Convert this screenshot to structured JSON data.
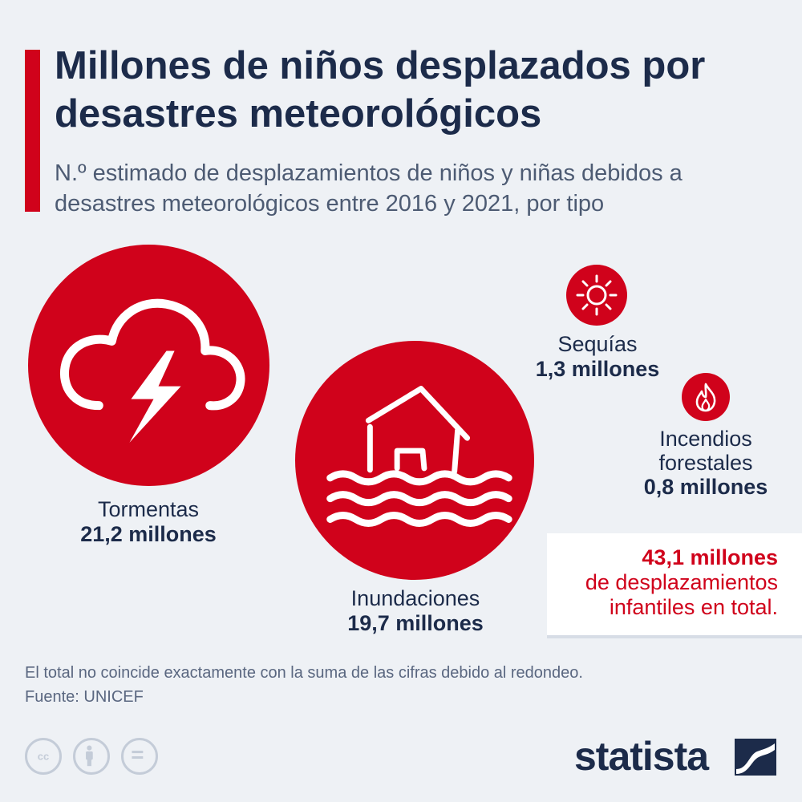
{
  "header": {
    "title": "Millones de niños desplazados por desastres meteorológicos",
    "subtitle": "N.º estimado de desplazamientos de niños y niñas debidos a desastres meteorológicos entre 2016 y 2021, por tipo"
  },
  "chart_data": {
    "type": "bubble",
    "unit": "millones",
    "categories": [
      "Tormentas",
      "Inundaciones",
      "Sequías",
      "Incendios forestales"
    ],
    "values": [
      21.2,
      19.7,
      1.3,
      0.8
    ],
    "total": 43.1
  },
  "labels": {
    "storms": {
      "name": "Tormentas",
      "value": "21,2 millones",
      "icon": "storm-cloud-lightning-icon"
    },
    "floods": {
      "name": "Inundaciones",
      "value": "19,7 millones",
      "icon": "flooded-house-icon"
    },
    "drought": {
      "name": "Sequías",
      "value": "1,3 millones",
      "icon": "sun-icon"
    },
    "fire": {
      "name_line1": "Incendios",
      "name_line2": "forestales",
      "value": "0,8 millones",
      "icon": "flame-icon"
    }
  },
  "total": {
    "value": "43,1 millones",
    "line2": "de desplazamientos",
    "line3": "infantiles en total."
  },
  "footer": {
    "note": "El total no coincide exactamente con la suma de las cifras debido al redondeo.",
    "source": "Fuente: UNICEF",
    "license_icons": [
      "cc-icon",
      "by-icon",
      "nd-icon"
    ]
  },
  "brand": {
    "name": "statista"
  },
  "colors": {
    "accent": "#d0021b",
    "text": "#1c2b4a",
    "background": "#eef1f5"
  }
}
